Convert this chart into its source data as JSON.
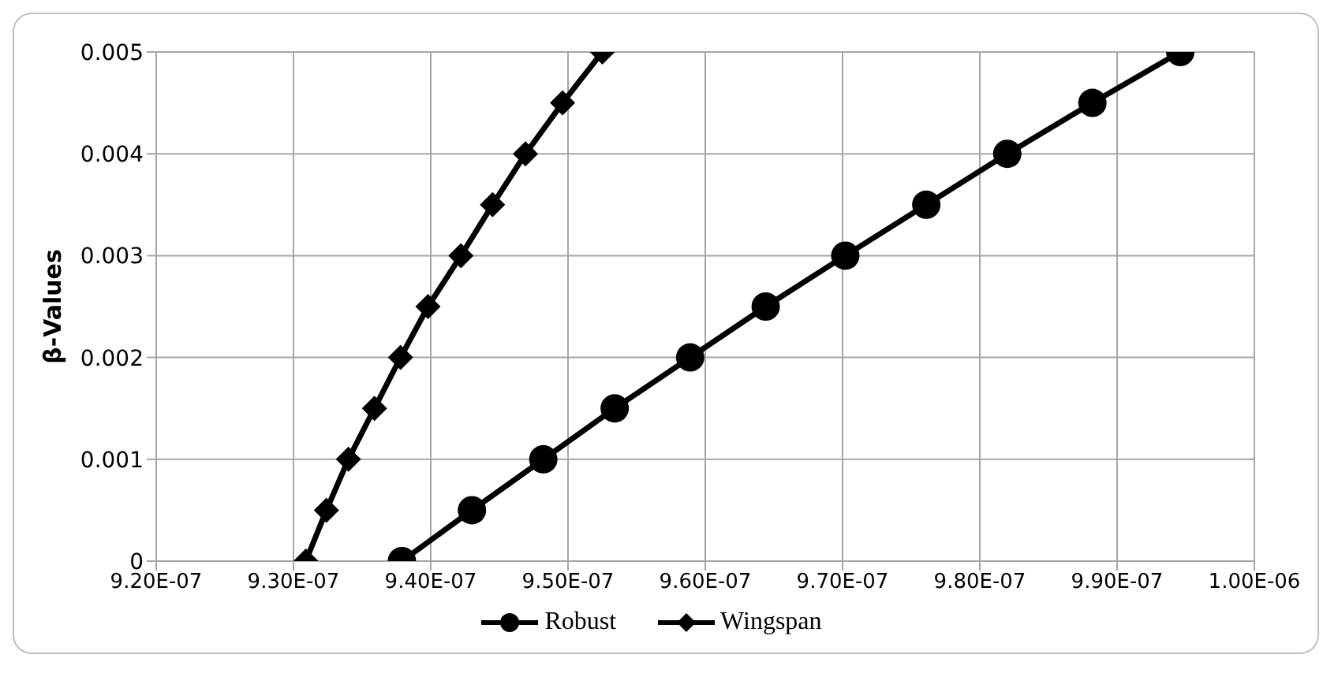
{
  "chart_data": {
    "type": "line",
    "ylabel": "β-Values",
    "xlim": [
      9.2e-07,
      1e-06
    ],
    "xticks": [
      {
        "value": 9.2e-07,
        "label": "9.20E-07"
      },
      {
        "value": 9.3e-07,
        "label": "9.30E-07"
      },
      {
        "value": 9.4e-07,
        "label": "9.40E-07"
      },
      {
        "value": 9.5e-07,
        "label": "9.50E-07"
      },
      {
        "value": 9.6e-07,
        "label": "9.60E-07"
      },
      {
        "value": 9.7e-07,
        "label": "9.70E-07"
      },
      {
        "value": 9.8e-07,
        "label": "9.80E-07"
      },
      {
        "value": 9.9e-07,
        "label": "9.90E-07"
      },
      {
        "value": 1e-06,
        "label": "1.00E-06"
      }
    ],
    "ylim": [
      0,
      0.005
    ],
    "yticks": [
      0,
      0.001,
      0.002,
      0.003,
      0.004,
      0.005
    ],
    "grid": true,
    "legend": "bottom",
    "line_style": "solid",
    "series": [
      {
        "name": "Robust",
        "color": "#000000",
        "marker": "circle",
        "x": [
          9.379e-07,
          9.43e-07,
          9.482e-07,
          9.534e-07,
          9.589e-07,
          9.644e-07,
          9.702e-07,
          9.761e-07,
          9.82e-07,
          9.882e-07,
          9.946e-07
        ],
        "values": [
          0,
          0.0005,
          0.001,
          0.0015,
          0.002,
          0.0025,
          0.003,
          0.0035,
          0.004,
          0.0045,
          0.005
        ]
      },
      {
        "name": "Wingspan",
        "color": "#000000",
        "marker": "diamond",
        "x": [
          9.309e-07,
          9.324e-07,
          9.34e-07,
          9.359e-07,
          9.378e-07,
          9.398e-07,
          9.422e-07,
          9.445e-07,
          9.469e-07,
          9.496e-07,
          9.525e-07
        ],
        "values": [
          0,
          0.0005,
          0.001,
          0.0015,
          0.002,
          0.0025,
          0.003,
          0.0035,
          0.004,
          0.0045,
          0.005
        ]
      }
    ]
  }
}
